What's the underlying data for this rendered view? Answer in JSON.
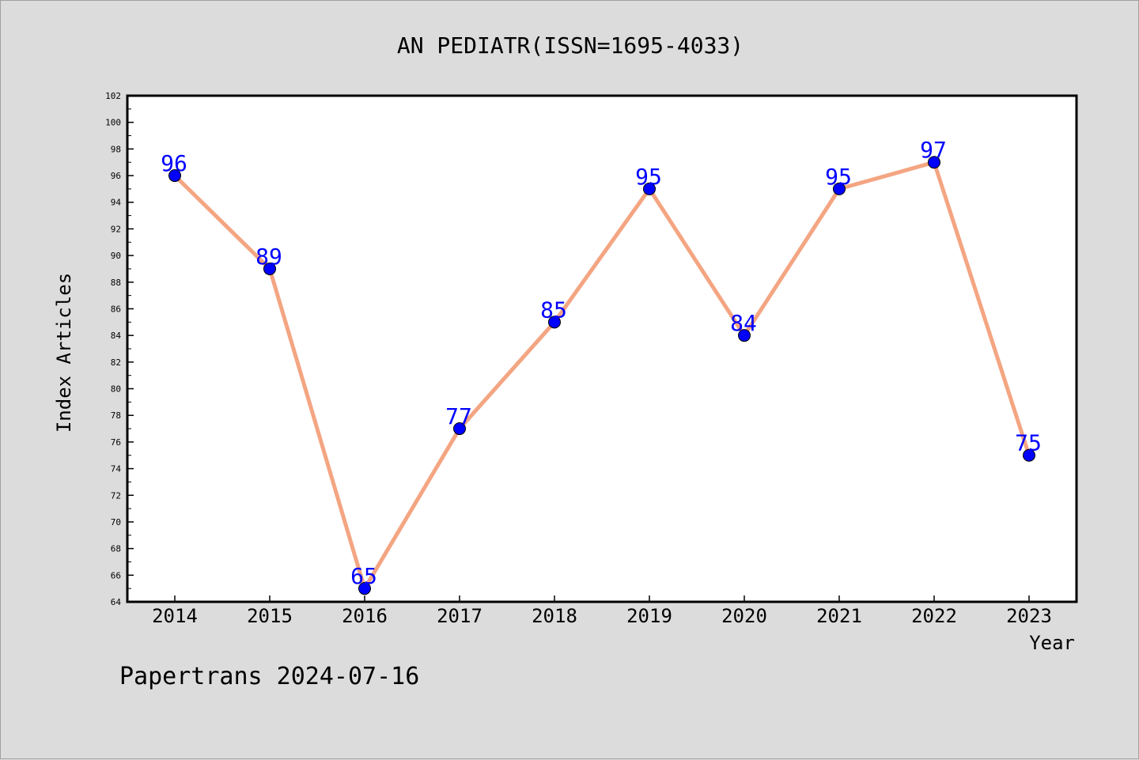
{
  "chart_data": {
    "type": "line",
    "title": "AN PEDIATR(ISSN=1695-4033)",
    "xlabel": "Year",
    "ylabel": "Index Articles",
    "categories": [
      "2014",
      "2015",
      "2016",
      "2017",
      "2018",
      "2019",
      "2020",
      "2021",
      "2022",
      "2023"
    ],
    "series": [
      {
        "values": [
          96,
          89,
          65,
          77,
          85,
          95,
          84,
          95,
          97,
          75
        ]
      }
    ],
    "ylim": [
      64,
      102
    ],
    "yticks": [
      64,
      66,
      68,
      70,
      72,
      74,
      76,
      78,
      80,
      82,
      84,
      86,
      88,
      90,
      92,
      94,
      96,
      98,
      100,
      102
    ],
    "grid": false,
    "data_labels": true,
    "colors": {
      "line": "#f4a582",
      "marker": "#0000ff",
      "label": "#0000ff",
      "plot_bg": "#ffffff",
      "page_bg": "#dcdcdc"
    }
  },
  "footer": "Papertrans 2024-07-16"
}
